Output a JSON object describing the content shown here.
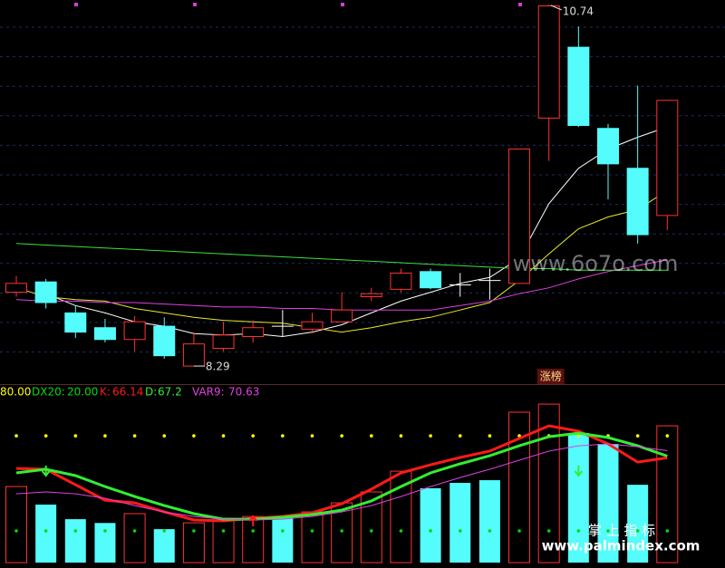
{
  "chart_data": [
    {
      "type": "candlestick",
      "open": [
        8.79,
        8.86,
        8.65,
        8.55,
        8.47,
        8.56,
        8.29,
        8.41,
        8.49,
        8.56,
        8.54,
        8.59,
        8.76,
        8.81,
        8.93,
        8.84,
        8.87,
        8.85,
        9.97,
        10.45,
        9.9,
        9.63,
        9.31
      ],
      "high": [
        8.9,
        8.88,
        8.7,
        8.61,
        8.63,
        8.62,
        8.52,
        8.59,
        8.6,
        8.67,
        8.65,
        8.79,
        8.82,
        8.95,
        8.95,
        8.92,
        8.95,
        9.76,
        10.74,
        10.59,
        9.93,
        10.19,
        10.09
      ],
      "low": [
        8.76,
        8.68,
        8.48,
        8.45,
        8.39,
        8.34,
        8.29,
        8.39,
        8.45,
        8.49,
        8.51,
        8.59,
        8.73,
        8.79,
        8.81,
        8.76,
        8.74,
        8.85,
        9.68,
        9.91,
        9.42,
        9.12,
        9.21
      ],
      "close": [
        8.85,
        8.72,
        8.52,
        8.47,
        8.59,
        8.36,
        8.44,
        8.5,
        8.55,
        8.56,
        8.59,
        8.67,
        8.78,
        8.92,
        8.82,
        8.84,
        8.87,
        9.76,
        10.73,
        9.92,
        9.66,
        9.18,
        10.09
      ],
      "up_color": "#ff3232",
      "down_color": "#54fcfc",
      "flat_color": "#ffffff",
      "lines": [
        {
          "color": "#ffffff",
          "values": [
            null,
            8.78,
            8.7,
            8.65,
            8.59,
            8.56,
            8.51,
            8.5,
            8.51,
            8.49,
            8.52,
            8.57,
            8.65,
            8.73,
            8.79,
            8.85,
            8.89,
            9.02,
            9.39,
            9.63,
            9.76,
            9.84,
            9.91
          ]
        },
        {
          "color": "#e8e832",
          "values": [
            8.82,
            8.76,
            8.74,
            8.73,
            8.68,
            8.65,
            8.62,
            8.6,
            8.59,
            8.58,
            8.55,
            8.52,
            8.55,
            8.59,
            8.62,
            8.67,
            8.72,
            8.87,
            9.05,
            9.22,
            9.3,
            9.35,
            9.48
          ]
        },
        {
          "color": "#e040e0",
          "values": [
            8.74,
            8.73,
            8.73,
            8.72,
            8.72,
            8.71,
            8.7,
            8.69,
            8.69,
            8.68,
            8.68,
            8.67,
            8.67,
            8.67,
            8.67,
            8.7,
            8.73,
            8.78,
            8.82,
            8.88,
            8.93,
            8.97,
            9.01
          ]
        },
        {
          "color": "#3ce03c",
          "values": [
            9.12,
            9.11,
            9.1,
            9.09,
            9.08,
            9.07,
            9.06,
            9.05,
            9.04,
            9.03,
            9.02,
            9.01,
            9.0,
            8.99,
            8.98,
            8.97,
            8.96,
            8.95,
            8.95,
            8.94,
            8.94,
            8.94,
            8.94
          ]
        }
      ],
      "ylim": [
        8.18,
        10.77
      ],
      "tag": "涨榜",
      "watermark": "www.6o7o.com"
    },
    {
      "type": "bar",
      "values": [
        48,
        36.6,
        27.4,
        25,
        30.9,
        21.1,
        25.1,
        28,
        29.1,
        29.1,
        32,
        37.7,
        44.6,
        57.7,
        46.9,
        50.3,
        52,
        94.9,
        100,
        81.7,
        74.9,
        49.1,
        86.3
      ],
      "levels": [
        {
          "value": 80,
          "value_label": "80.00",
          "color": "#ffff00"
        },
        {
          "name": "DX20:",
          "value": 20,
          "value_label": "20.00",
          "color": "#00dd00"
        }
      ],
      "series": [
        {
          "name": "K:",
          "color": "#ff1a1a",
          "values": [
            59.4,
            58.9,
            49.1,
            39.4,
            37.7,
            32,
            26.9,
            26.3,
            28,
            29.1,
            31.4,
            37.1,
            46.3,
            56.6,
            61.7,
            66.3,
            70.3,
            78.3,
            86.3,
            82.9,
            74.9,
            63.4,
            66.14
          ]
        },
        {
          "name": "D:",
          "color": "#33ee33",
          "values": [
            56.6,
            58.9,
            54.9,
            48,
            41.7,
            36,
            30.9,
            27.4,
            27.4,
            28.6,
            30.3,
            33.1,
            38.9,
            48,
            56.6,
            62.3,
            67.4,
            73.7,
            79.4,
            81.7,
            78.9,
            73.7,
            67.2
          ]
        },
        {
          "name": "VAR9:",
          "color": "#e040e0",
          "values": [
            43.4,
            44.6,
            43.4,
            40.6,
            36,
            32,
            29.1,
            27.4,
            26.9,
            27.4,
            29.1,
            32,
            36,
            41.7,
            48,
            53.7,
            58.9,
            64.6,
            70.3,
            73.7,
            74.9,
            73.1,
            70.63
          ]
        }
      ],
      "ylim": [
        -3.4,
        110.9
      ]
    }
  ],
  "footer": {
    "line1": "掌 上 指 标",
    "line2": "www.palmindex.com"
  }
}
